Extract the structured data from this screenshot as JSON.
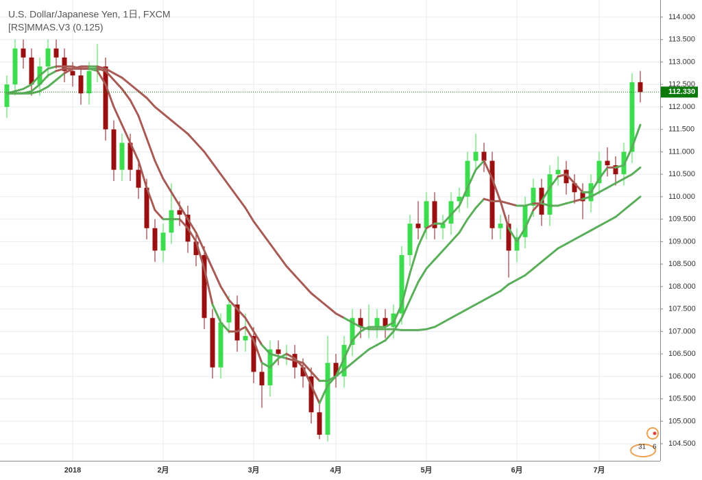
{
  "chart_data": {
    "type": "candlestick",
    "title": "U.S. Dollar/Japanese Yen, 1日, FXCM",
    "subtitle": "[RS]MMAS.V3 (0.125)",
    "categories": [
      null,
      null,
      null,
      null,
      null,
      null,
      null,
      null,
      "2018",
      null,
      null,
      null,
      null,
      null,
      null,
      null,
      null,
      null,
      null,
      "2月",
      null,
      null,
      null,
      null,
      null,
      null,
      null,
      null,
      null,
      null,
      "3月",
      null,
      null,
      null,
      null,
      null,
      null,
      null,
      null,
      null,
      "4月",
      null,
      null,
      null,
      null,
      null,
      null,
      null,
      null,
      null,
      null,
      "5月",
      null,
      null,
      null,
      null,
      null,
      null,
      null,
      null,
      null,
      null,
      "6月",
      null,
      null,
      null,
      null,
      null,
      null,
      null,
      null,
      null,
      "7月",
      null,
      null,
      null,
      null,
      null
    ],
    "open": [
      112.0,
      112.5,
      113.3,
      113.1,
      112.5,
      112.9,
      113.3,
      113.1,
      112.8,
      112.7,
      112.3,
      112.8,
      112.9,
      111.5,
      110.6,
      111.2,
      110.6,
      110.2,
      109.3,
      108.8,
      109.2,
      109.7,
      109.6,
      109.0,
      108.7,
      107.3,
      106.2,
      107.2,
      107.6,
      106.8,
      106.9,
      106.1,
      105.8,
      106.6,
      106.5,
      106.5,
      106.2,
      106.0,
      105.2,
      104.7,
      106.3,
      106.0,
      106.7,
      107.3,
      107.1,
      107.1,
      107.3,
      107.1,
      107.4,
      108.7,
      109.4,
      109.3,
      109.9,
      109.3,
      109.4,
      109.9,
      110.0,
      110.8,
      111.0,
      110.8,
      109.3,
      109.4,
      108.8,
      109.1,
      109.8,
      110.2,
      109.6,
      110.5,
      110.6,
      110.3,
      110.1,
      109.9,
      110.3,
      110.8,
      110.7,
      110.5,
      111.0,
      112.55
    ],
    "high": [
      112.7,
      113.5,
      113.5,
      113.3,
      113.1,
      113.5,
      113.5,
      113.3,
      113.0,
      112.9,
      113.0,
      113.4,
      113.1,
      111.7,
      111.4,
      111.4,
      110.8,
      110.4,
      109.5,
      109.4,
      110.3,
      109.9,
      109.8,
      109.2,
      108.9,
      107.5,
      107.4,
      107.8,
      107.8,
      107.4,
      107.1,
      106.3,
      106.8,
      106.8,
      106.7,
      106.7,
      106.4,
      106.2,
      105.4,
      106.9,
      106.5,
      106.9,
      107.5,
      107.5,
      107.6,
      107.5,
      107.5,
      107.6,
      108.9,
      109.6,
      109.9,
      110.1,
      110.1,
      109.6,
      110.1,
      110.2,
      111.0,
      111.4,
      111.2,
      111.0,
      109.6,
      109.6,
      109.3,
      110.0,
      110.4,
      110.4,
      110.7,
      110.9,
      110.8,
      110.5,
      110.3,
      110.5,
      111.0,
      111.1,
      110.9,
      111.2,
      112.75,
      112.8
    ],
    "low": [
      111.75,
      112.25,
      112.85,
      112.25,
      112.25,
      112.65,
      112.85,
      112.55,
      112.45,
      112.05,
      112.05,
      112.55,
      111.25,
      110.35,
      110.35,
      110.35,
      109.95,
      109.05,
      108.55,
      108.55,
      108.95,
      109.35,
      108.75,
      108.45,
      107.05,
      105.95,
      105.95,
      106.95,
      106.55,
      106.55,
      105.85,
      105.3,
      105.55,
      106.25,
      106.25,
      105.95,
      105.75,
      104.95,
      104.6,
      104.55,
      105.75,
      105.75,
      106.45,
      106.85,
      106.85,
      106.85,
      106.85,
      106.85,
      107.15,
      108.45,
      109.05,
      109.05,
      109.05,
      109.05,
      109.15,
      109.65,
      109.75,
      110.55,
      110.55,
      109.05,
      109.05,
      108.2,
      108.55,
      108.85,
      109.55,
      109.35,
      109.35,
      110.25,
      110.05,
      109.85,
      109.5,
      109.65,
      110.05,
      110.45,
      110.25,
      110.25,
      110.75,
      112.1
    ],
    "close": [
      112.5,
      113.3,
      113.1,
      112.5,
      112.9,
      113.3,
      113.1,
      112.8,
      112.7,
      112.3,
      112.8,
      112.9,
      111.5,
      110.6,
      111.2,
      110.6,
      110.2,
      109.3,
      108.8,
      109.2,
      109.7,
      109.6,
      109.0,
      108.7,
      107.3,
      106.2,
      107.2,
      107.6,
      106.8,
      106.9,
      106.1,
      105.8,
      106.6,
      106.5,
      106.5,
      106.2,
      106.0,
      105.2,
      104.7,
      106.3,
      106.0,
      106.7,
      107.3,
      107.1,
      107.1,
      107.3,
      107.1,
      107.4,
      108.7,
      109.4,
      109.3,
      109.9,
      109.3,
      109.4,
      109.9,
      110.0,
      110.8,
      111.0,
      110.8,
      109.3,
      109.4,
      108.8,
      109.1,
      109.8,
      110.2,
      109.6,
      110.5,
      110.6,
      110.3,
      110.1,
      109.9,
      110.3,
      110.8,
      110.7,
      110.5,
      111.0,
      112.55,
      112.33
    ],
    "up_color": "#3ddc4e",
    "down_color": "#9a1010",
    "indicator_up_color": "#5aae5a",
    "indicator_down_color": "#a85a55",
    "indicators": [
      {
        "values": [
          112.3,
          112.35,
          112.4,
          112.5,
          112.7,
          112.85,
          112.9,
          112.9,
          112.9,
          112.85,
          112.85,
          112.8,
          112.5,
          112.0,
          111.6,
          111.2,
          110.8,
          110.2,
          109.7,
          109.5,
          109.5,
          109.5,
          109.3,
          109.0,
          108.4,
          107.6,
          107.2,
          107.0,
          107.0,
          107.1,
          106.8,
          106.3,
          106.2,
          106.4,
          106.5,
          106.4,
          106.2,
          105.8,
          105.4,
          105.8,
          106.0,
          106.4,
          106.8,
          107.0,
          107.1,
          107.1,
          107.1,
          107.2,
          107.6,
          108.3,
          108.9,
          109.3,
          109.4,
          109.4,
          109.6,
          109.8,
          110.2,
          110.6,
          110.8,
          110.4,
          109.9,
          109.3,
          109.0,
          109.3,
          109.7,
          109.9,
          110.2,
          110.45,
          110.5,
          110.3,
          110.1,
          110.1,
          110.4,
          110.65,
          110.65,
          110.7,
          111.1,
          111.6
        ]
      },
      {
        "values": [
          112.3,
          112.3,
          112.3,
          112.35,
          112.5,
          112.7,
          112.8,
          112.85,
          112.85,
          112.85,
          112.85,
          112.85,
          112.8,
          112.6,
          112.4,
          112.15,
          111.8,
          111.3,
          110.8,
          110.4,
          110.1,
          109.8,
          109.5,
          109.2,
          108.8,
          108.4,
          108.0,
          107.7,
          107.5,
          107.3,
          107.0,
          106.7,
          106.5,
          106.45,
          106.4,
          106.35,
          106.3,
          106.1,
          105.9,
          105.9,
          106.0,
          106.15,
          106.3,
          106.45,
          106.6,
          106.7,
          106.8,
          107.0,
          107.3,
          107.7,
          108.1,
          108.4,
          108.6,
          108.8,
          109.0,
          109.2,
          109.5,
          109.75,
          109.95,
          109.9,
          109.9,
          109.85,
          109.8,
          109.8,
          109.85,
          109.85,
          109.8,
          109.8,
          109.85,
          109.9,
          109.95,
          110.0,
          110.1,
          110.2,
          110.3,
          110.4,
          110.5,
          110.65
        ]
      },
      {
        "values": [
          112.3,
          112.3,
          112.3,
          112.3,
          112.35,
          112.45,
          112.6,
          112.75,
          112.85,
          112.9,
          112.9,
          112.9,
          112.85,
          112.75,
          112.65,
          112.5,
          112.35,
          112.2,
          112.0,
          111.85,
          111.7,
          111.55,
          111.4,
          111.2,
          111.0,
          110.75,
          110.5,
          110.25,
          110.0,
          109.75,
          109.45,
          109.2,
          108.95,
          108.7,
          108.45,
          108.25,
          108.05,
          107.85,
          107.7,
          107.55,
          107.4,
          107.3,
          107.2,
          107.1,
          107.05,
          107.05,
          107.05,
          107.05,
          107.03,
          107.03,
          107.03,
          107.05,
          107.1,
          107.2,
          107.3,
          107.4,
          107.5,
          107.6,
          107.7,
          107.8,
          107.9,
          108.05,
          108.15,
          108.25,
          108.4,
          108.55,
          108.7,
          108.85,
          108.95,
          109.05,
          109.15,
          109.25,
          109.35,
          109.45,
          109.55,
          109.7,
          109.85,
          110.0
        ]
      }
    ],
    "last_price": {
      "value": 112.33,
      "label": "112.330"
    },
    "last_price_color": "#0b7a0b",
    "ylim": [
      104.12,
      114.38
    ],
    "yticks": [
      {
        "value": 104.5,
        "label": "104.500"
      },
      {
        "value": 105,
        "label": "105.000"
      },
      {
        "value": 105.5,
        "label": "105.500"
      },
      {
        "value": 106,
        "label": "106.000"
      },
      {
        "value": 106.5,
        "label": "106.500"
      },
      {
        "value": 107,
        "label": "107.000"
      },
      {
        "value": 107.5,
        "label": "107.500"
      },
      {
        "value": 108,
        "label": "108.000"
      },
      {
        "value": 108.5,
        "label": "108.500"
      },
      {
        "value": 109,
        "label": "109.000"
      },
      {
        "value": 109.5,
        "label": "109.500"
      },
      {
        "value": 110,
        "label": "110.000"
      },
      {
        "value": 110.5,
        "label": "110.500"
      },
      {
        "value": 111,
        "label": "111.000"
      },
      {
        "value": 111.5,
        "label": "111.500"
      },
      {
        "value": 112,
        "label": "112.000"
      },
      {
        "value": 112.5,
        "label": "112.500"
      },
      {
        "value": 113,
        "label": "113.000"
      },
      {
        "value": 113.5,
        "label": "113.500"
      },
      {
        "value": 114,
        "label": "114.000"
      }
    ],
    "grid": true,
    "event_labels": [
      "31",
      "6"
    ]
  }
}
